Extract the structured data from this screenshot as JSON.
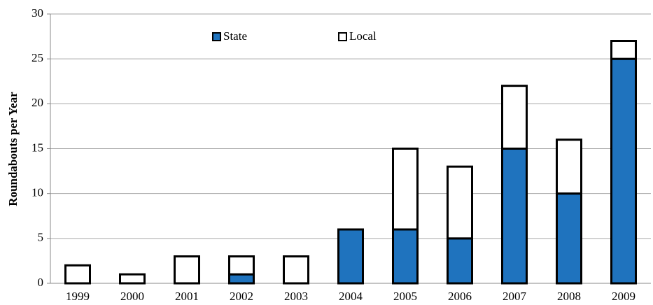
{
  "chart_data": {
    "type": "stacked_bar",
    "y_label": "Roundabouts per Year",
    "categories": [
      "1999",
      "2000",
      "2001",
      "2002",
      "2003",
      "2004",
      "2005",
      "2006",
      "2007",
      "2008",
      "2009"
    ],
    "series": [
      {
        "name": "State",
        "color": "#1f73be",
        "values": [
          0,
          0,
          0,
          1,
          0,
          6,
          6,
          5,
          15,
          10,
          25
        ]
      },
      {
        "name": "Local",
        "color": "#ffffff",
        "values": [
          2,
          1,
          3,
          2,
          3,
          0,
          9,
          8,
          7,
          6,
          2
        ]
      }
    ],
    "ylim": [
      0,
      30
    ],
    "yticks": [
      0,
      5,
      10,
      15,
      20,
      25,
      30
    ],
    "grid": true
  }
}
